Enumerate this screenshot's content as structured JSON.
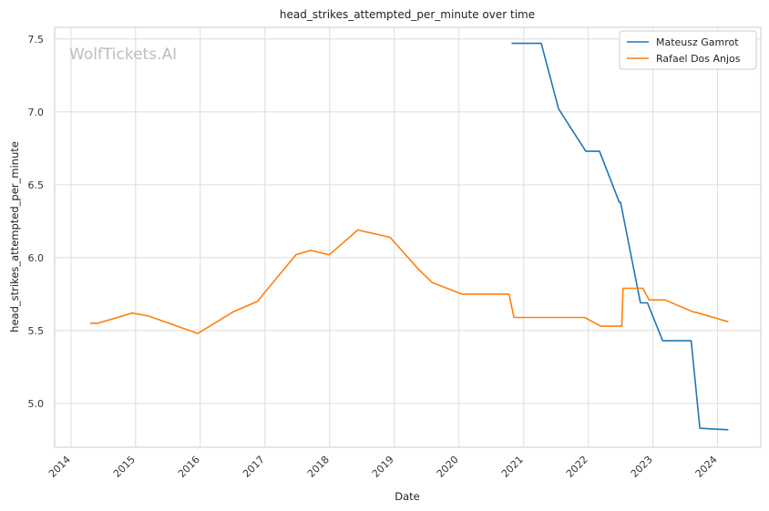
{
  "watermark": "WolfTickets.AI",
  "chart_data": {
    "type": "line",
    "title": "head_strikes_attempted_per_minute over time",
    "xlabel": "Date",
    "ylabel": "head_strikes_attempted_per_minute",
    "x_ticks": [
      "2014",
      "2015",
      "2016",
      "2017",
      "2018",
      "2019",
      "2020",
      "2021",
      "2022",
      "2023",
      "2024"
    ],
    "y_ticks": [
      "5.0",
      "5.5",
      "6.0",
      "6.5",
      "7.0",
      "7.5"
    ],
    "xlim": [
      "2013-10-01",
      "2024-09-01"
    ],
    "ylim": [
      4.7,
      7.58
    ],
    "grid": true,
    "legend_position": "top-right",
    "series": [
      {
        "name": "Mateusz Gamrot",
        "color": "#1f77b4",
        "x": [
          "2020-10-24",
          "2021-04-10",
          "2021-07-17",
          "2021-12-18",
          "2022-03-05",
          "2022-06-25",
          "2022-07-02",
          "2022-10-22",
          "2022-12-01",
          "2023-02-25",
          "2023-08-05",
          "2023-09-23",
          "2024-03-02"
        ],
        "y": [
          7.47,
          7.47,
          7.02,
          6.73,
          6.73,
          6.38,
          6.38,
          5.69,
          5.69,
          5.43,
          5.43,
          4.83,
          4.82
        ]
      },
      {
        "name": "Rafael Dos Anjos",
        "color": "#ff7f0e",
        "x": [
          "2014-04-19",
          "2014-06-01",
          "2014-12-13",
          "2015-03-14",
          "2015-12-19",
          "2016-07-07",
          "2016-11-19",
          "2017-06-24",
          "2017-09-16",
          "2017-12-30",
          "2018-06-09",
          "2018-12-08",
          "2019-05-18",
          "2019-08-03",
          "2020-01-18",
          "2020-10-10",
          "2020-11-07",
          "2021-12-11",
          "2022-03-12",
          "2022-07-09",
          "2022-07-16",
          "2022-11-05",
          "2022-12-10",
          "2023-03-11",
          "2023-08-12",
          "2023-09-16",
          "2024-03-02"
        ],
        "y": [
          5.55,
          5.55,
          5.62,
          5.6,
          5.48,
          5.63,
          5.7,
          6.02,
          6.05,
          6.02,
          6.19,
          6.14,
          5.92,
          5.83,
          5.75,
          5.75,
          5.59,
          5.59,
          5.53,
          5.53,
          5.79,
          5.79,
          5.71,
          5.71,
          5.63,
          5.62,
          5.56
        ]
      }
    ]
  }
}
